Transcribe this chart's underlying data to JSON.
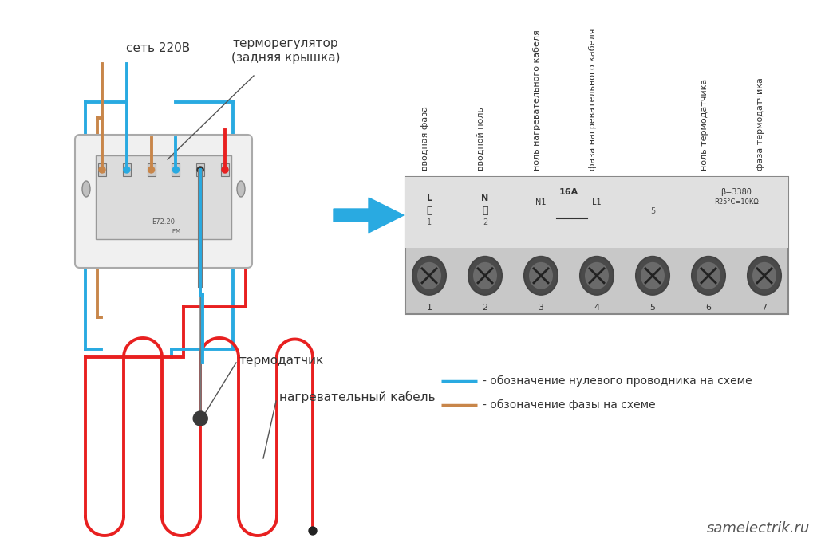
{
  "bg_color": "#ffffff",
  "wire_blue": "#29aae1",
  "wire_brown": "#c8864a",
  "wire_red": "#e82020",
  "wire_gray": "#777777",
  "text_color": "#333333",
  "label_set_220": "сеть 220В",
  "label_thermo_reg": "терморегулятор",
  "label_back_cover": "(задняя крышка)",
  "label_sensor": "термодатчик",
  "label_heater": "нагревательный кабель",
  "label_legend_blue": "- обозначение нулевого проводника на схеме",
  "label_legend_brown": "- обзоначение фазы на схеме",
  "label_site": "samelectrik.ru",
  "col_labels": [
    "вводная фаза",
    "вводной ноль",
    "ноль нагревательного кабеля",
    "фаза нагревательного кабеля",
    "ноль термодатчика",
    "фаза термодатчика"
  ]
}
